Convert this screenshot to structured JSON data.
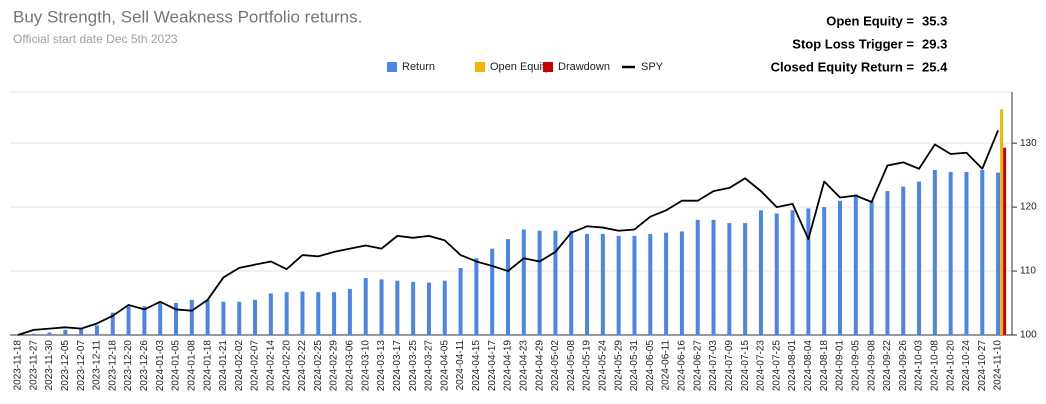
{
  "chart_data": {
    "type": "bar",
    "title": "Buy Strength, Sell Weakness Portfolio returns.",
    "subtitle": "Official start date Dec 5th 2023",
    "annotations": [
      {
        "label": "Open Equity =",
        "value": 35.3
      },
      {
        "label": "Stop Loss Trigger =",
        "value": 29.3
      },
      {
        "label": "Closed Equity Return =",
        "value": 25.4
      }
    ],
    "categories": [
      "2023-11-18",
      "2023-11-27",
      "2023-11-30",
      "2023-12-05",
      "2023-12-07",
      "2023-12-11",
      "2023-12-18",
      "2023-12-20",
      "2023-12-26",
      "2024-01-03",
      "2024-01-05",
      "2024-01-08",
      "2024-01-18",
      "2024-01-21",
      "2024-02-02",
      "2024-02-07",
      "2024-02-14",
      "2024-02-20",
      "2024-02-22",
      "2024-02-25",
      "2024-02-29",
      "2024-03-06",
      "2024-03-10",
      "2024-03-13",
      "2024-03-17",
      "2024-03-25",
      "2024-03-27",
      "2024-04-05",
      "2024-04-11",
      "2024-04-15",
      "2024-04-17",
      "2024-04-19",
      "2024-04-23",
      "2024-04-29",
      "2024-05-02",
      "2024-05-08",
      "2024-05-19",
      "2024-05-24",
      "2024-05-29",
      "2024-05-31",
      "2024-06-05",
      "2024-06-11",
      "2024-06-16",
      "2024-06-27",
      "2024-07-03",
      "2024-07-09",
      "2024-07-15",
      "2024-07-23",
      "2024-07-25",
      "2024-08-01",
      "2024-08-04",
      "2024-08-18",
      "2024-09-01",
      "2024-09-05",
      "2024-09-08",
      "2024-09-22",
      "2024-09-26",
      "2024-10-03",
      "2024-10-08",
      "2024-10-20",
      "2024-10-24",
      "2024-10-27",
      "2024-11-10"
    ],
    "series": [
      {
        "name": "Return",
        "color": "#4a86e8",
        "type": "bar",
        "values": [
          100.1,
          100.2,
          100.4,
          100.8,
          101,
          101.5,
          103.5,
          104.5,
          104.5,
          105,
          105,
          105.5,
          105.5,
          105.2,
          105.2,
          105.5,
          106.5,
          106.7,
          106.8,
          106.7,
          106.7,
          107.2,
          108.9,
          108.7,
          108.5,
          108.3,
          108.2,
          108.5,
          110.5,
          112,
          113.5,
          115,
          116.5,
          116.3,
          116.3,
          116.3,
          115.8,
          115.8,
          115.5,
          115.5,
          115.8,
          116,
          116.2,
          118,
          118,
          117.5,
          117.5,
          119.5,
          119,
          119.5,
          119.8,
          120,
          121,
          122,
          121,
          122.5,
          123.2,
          124,
          125.8,
          125.5,
          125.5,
          125.8,
          125.4
        ]
      },
      {
        "name": "Open Equity",
        "color": "#f4b400",
        "type": "bar",
        "values": [
          null,
          null,
          null,
          null,
          null,
          null,
          null,
          null,
          null,
          null,
          null,
          null,
          null,
          null,
          null,
          null,
          null,
          null,
          null,
          null,
          null,
          null,
          null,
          null,
          null,
          null,
          null,
          null,
          null,
          null,
          null,
          null,
          null,
          null,
          null,
          null,
          null,
          null,
          null,
          null,
          null,
          null,
          null,
          null,
          null,
          null,
          null,
          null,
          null,
          null,
          null,
          null,
          null,
          null,
          null,
          null,
          null,
          null,
          null,
          null,
          null,
          null,
          135.3
        ]
      },
      {
        "name": "Drawdown",
        "color": "#cc0000",
        "type": "bar",
        "values": [
          null,
          null,
          null,
          null,
          null,
          null,
          null,
          null,
          null,
          null,
          null,
          null,
          null,
          null,
          null,
          null,
          null,
          null,
          null,
          null,
          null,
          null,
          null,
          null,
          null,
          null,
          null,
          null,
          null,
          null,
          null,
          null,
          null,
          null,
          null,
          null,
          null,
          null,
          null,
          null,
          null,
          null,
          null,
          null,
          null,
          null,
          null,
          null,
          null,
          null,
          null,
          null,
          null,
          null,
          null,
          null,
          null,
          null,
          null,
          null,
          null,
          null,
          129.3
        ]
      },
      {
        "name": "SPY",
        "color": "#000000",
        "type": "line",
        "values": [
          100,
          100.8,
          101,
          101.2,
          101,
          101.8,
          103,
          104.7,
          104,
          105.2,
          104,
          103.8,
          105.5,
          109,
          110.5,
          111,
          111.5,
          110.3,
          112.5,
          112.3,
          113,
          113.5,
          114,
          113.5,
          115.5,
          115.2,
          115.5,
          114.8,
          112.5,
          111.5,
          110.8,
          110,
          112,
          111.5,
          113,
          116,
          117,
          116.8,
          116.3,
          116.5,
          118.5,
          119.5,
          121,
          121,
          122.5,
          123,
          124.5,
          122.5,
          120,
          120.5,
          115,
          124,
          121.5,
          121.8,
          120.8,
          126.5,
          127,
          126,
          129.8,
          128.3,
          128.5,
          126,
          132
        ]
      }
    ],
    "ylim": [
      100,
      138
    ],
    "yticks": [
      100,
      110,
      120,
      130
    ],
    "grid": true
  }
}
